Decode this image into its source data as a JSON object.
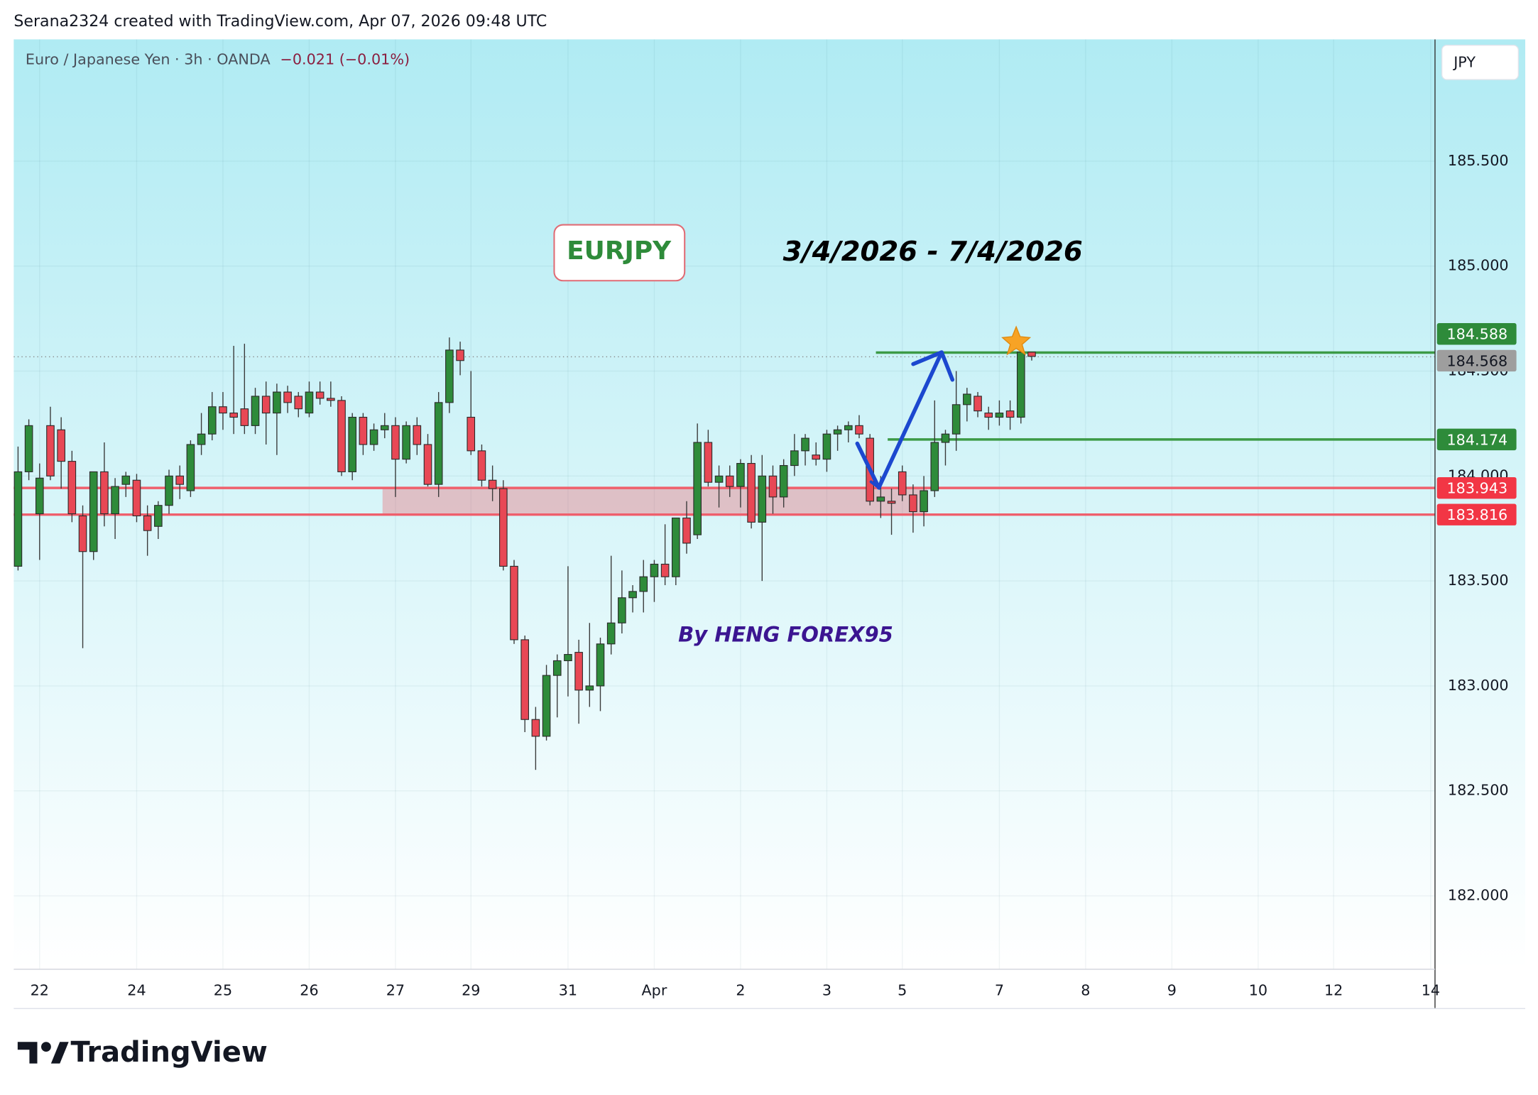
{
  "header": {
    "credit": "Serana2324 created with TradingView.com, Apr 07, 2026 09:48 UTC"
  },
  "footer": {
    "logo_text": "TradingView"
  },
  "chart_data": {
    "type": "candlestick",
    "title": "Euro / Japanese Yen · 3h · OANDA",
    "change": "−0.021 (−0.01%)",
    "currency": "JPY",
    "annotations": {
      "symbol": "EURJPY",
      "dates": "3/4/2026 - 7/4/2026",
      "author": "By HENG FOREX95"
    },
    "up_color": "#2e8b3a",
    "down_color": "#e84855",
    "grid": true,
    "xlim": [
      -0.4,
      131.4
    ],
    "xticks": [
      {
        "value": 2,
        "label": "22"
      },
      {
        "value": 11,
        "label": "24"
      },
      {
        "value": 19,
        "label": "25"
      },
      {
        "value": 27,
        "label": "26"
      },
      {
        "value": 35,
        "label": "27"
      },
      {
        "value": 42,
        "label": "29"
      },
      {
        "value": 51,
        "label": "31"
      },
      {
        "value": 59,
        "label": "Apr"
      },
      {
        "value": 67,
        "label": "2"
      },
      {
        "value": 75,
        "label": "3"
      },
      {
        "value": 82,
        "label": "5"
      },
      {
        "value": 91,
        "label": "7"
      },
      {
        "value": 99,
        "label": "8"
      },
      {
        "value": 107,
        "label": "9"
      },
      {
        "value": 115,
        "label": "10"
      },
      {
        "value": 122,
        "label": "12"
      },
      {
        "value": 131,
        "label": "14"
      }
    ],
    "ylim": [
      181.65,
      186.08
    ],
    "yticks": [
      {
        "value": 182,
        "label": "182.000"
      },
      {
        "value": 182.5,
        "label": "182.500"
      },
      {
        "value": 183,
        "label": "183.000"
      },
      {
        "value": 183.5,
        "label": "183.500"
      },
      {
        "value": 184,
        "label": "184.000"
      },
      {
        "value": 184.5,
        "label": "184.500"
      },
      {
        "value": 185,
        "label": "185.000"
      },
      {
        "value": 185.5,
        "label": "185.500"
      }
    ],
    "hlines": [
      {
        "value": 184.588,
        "color": "#3c9a46"
      },
      {
        "value": 184.174,
        "color": "#3c9a46"
      },
      {
        "value": 183.943,
        "color": "#ef5f6c"
      },
      {
        "value": 183.816,
        "color": "#ef5f6c"
      }
    ],
    "last_price": 184.568,
    "open": [
      183.57,
      184.02,
      183.82,
      184.24,
      184.22,
      184.07,
      183.81,
      183.64,
      184.02,
      183.82,
      183.96,
      183.98,
      183.81,
      183.76,
      183.86,
      184.0,
      183.93,
      184.15,
      184.2,
      184.33,
      184.3,
      184.32,
      184.24,
      184.38,
      184.3,
      184.4,
      184.38,
      184.3,
      184.4,
      184.37,
      184.36,
      184.02,
      184.28,
      184.15,
      184.22,
      184.24,
      184.08,
      184.24,
      184.15,
      183.96,
      184.35,
      184.6,
      184.28,
      184.12,
      183.98,
      183.94,
      183.57,
      183.22,
      182.84,
      182.76,
      183.05,
      183.12,
      183.16,
      182.98,
      183.0,
      183.2,
      183.3,
      183.42,
      183.45,
      183.52,
      183.58,
      183.52,
      183.8,
      183.72,
      184.16,
      183.97,
      184.0,
      183.95,
      184.06,
      183.78,
      184.0,
      183.9,
      184.05,
      184.12,
      184.1,
      184.08,
      184.2,
      184.22,
      184.24,
      184.18,
      183.88,
      183.88,
      184.02,
      183.91,
      183.83,
      183.93,
      184.16,
      184.2,
      184.34,
      184.38,
      184.3,
      184.28,
      184.31,
      184.28,
      184.59
    ],
    "high": [
      184.14,
      184.27,
      184.06,
      184.33,
      184.28,
      184.12,
      183.86,
      184.02,
      184.16,
      183.99,
      184.02,
      184.01,
      183.86,
      183.88,
      184.03,
      184.05,
      184.17,
      184.3,
      184.4,
      184.4,
      184.62,
      184.63,
      184.42,
      184.45,
      184.44,
      184.43,
      184.4,
      184.45,
      184.45,
      184.45,
      184.38,
      184.3,
      184.3,
      184.25,
      184.3,
      184.28,
      184.26,
      184.28,
      184.2,
      184.4,
      184.66,
      184.64,
      184.5,
      184.15,
      184.05,
      183.98,
      183.6,
      183.24,
      182.9,
      183.1,
      183.15,
      183.57,
      183.22,
      183.3,
      183.23,
      183.62,
      183.55,
      183.48,
      183.6,
      183.6,
      183.77,
      183.8,
      183.88,
      184.25,
      184.22,
      184.05,
      184.05,
      184.08,
      184.1,
      184.1,
      184.05,
      184.08,
      184.2,
      184.2,
      184.16,
      184.22,
      184.24,
      184.26,
      184.29,
      184.2,
      184.0,
      183.94,
      184.05,
      183.96,
      184.0,
      184.36,
      184.22,
      184.5,
      184.42,
      184.4,
      184.33,
      184.36,
      184.36,
      184.62,
      184.59
    ],
    "low": [
      183.55,
      183.98,
      183.6,
      183.98,
      183.94,
      183.78,
      183.18,
      183.6,
      183.76,
      183.7,
      183.9,
      183.78,
      183.62,
      183.7,
      183.82,
      183.89,
      183.9,
      184.1,
      184.17,
      184.22,
      184.2,
      184.2,
      184.2,
      184.15,
      184.1,
      184.3,
      184.28,
      184.28,
      184.34,
      184.33,
      184.0,
      183.98,
      184.1,
      184.12,
      184.18,
      183.9,
      184.06,
      184.1,
      183.95,
      183.9,
      184.3,
      184.48,
      184.1,
      183.95,
      183.88,
      183.55,
      183.2,
      182.78,
      182.6,
      182.74,
      182.85,
      182.95,
      182.82,
      182.9,
      182.88,
      183.15,
      183.25,
      183.35,
      183.35,
      183.4,
      183.48,
      183.48,
      183.63,
      183.7,
      183.95,
      183.85,
      183.9,
      183.85,
      183.75,
      183.5,
      183.82,
      183.85,
      184.0,
      184.05,
      184.05,
      184.02,
      184.12,
      184.16,
      184.18,
      183.86,
      183.8,
      183.72,
      183.88,
      183.73,
      183.76,
      183.9,
      184.05,
      184.12,
      184.26,
      184.28,
      184.22,
      184.24,
      184.22,
      184.25,
      184.55
    ],
    "close": [
      184.02,
      184.24,
      183.99,
      184.0,
      184.07,
      183.82,
      183.64,
      184.02,
      183.82,
      183.95,
      184.0,
      183.81,
      183.74,
      183.86,
      184.0,
      183.96,
      184.15,
      184.2,
      184.33,
      184.3,
      184.28,
      184.24,
      184.38,
      184.3,
      184.4,
      184.35,
      184.32,
      184.4,
      184.37,
      184.36,
      184.02,
      184.28,
      184.15,
      184.22,
      184.24,
      184.08,
      184.24,
      184.15,
      183.96,
      184.35,
      184.6,
      184.55,
      184.12,
      183.98,
      183.94,
      183.57,
      183.22,
      182.84,
      182.76,
      183.05,
      183.12,
      183.15,
      182.98,
      183.0,
      183.2,
      183.3,
      183.42,
      183.45,
      183.52,
      183.58,
      183.52,
      183.8,
      183.68,
      184.16,
      183.97,
      184.0,
      183.95,
      184.06,
      183.78,
      184.0,
      183.9,
      184.05,
      184.12,
      184.18,
      184.08,
      184.2,
      184.22,
      184.24,
      184.2,
      183.88,
      183.9,
      183.87,
      183.91,
      183.83,
      183.93,
      184.16,
      184.2,
      184.34,
      184.39,
      184.31,
      184.28,
      184.3,
      184.28,
      184.59,
      184.57
    ]
  }
}
